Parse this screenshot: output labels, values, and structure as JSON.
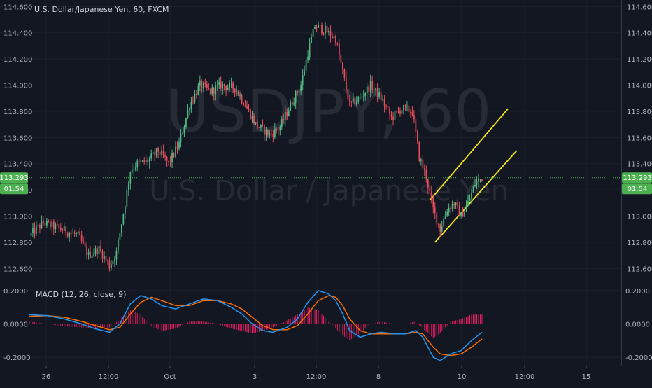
{
  "header": {
    "symbol_title": "U.S. Dollar/Japanese Yen, 60, FXCM",
    "watermark_ticker": "USDJPY, 60",
    "watermark_name": "U.S. Dollar / Japanese Yen"
  },
  "price_tag": {
    "value": "113.293",
    "countdown": "01:54"
  },
  "macd": {
    "label": "MACD (12, 26, close, 9)"
  },
  "colors": {
    "background": "#131722",
    "up_candle": "#53b987",
    "down_candle": "#eb4d5c",
    "channel_line": "#f5e61b",
    "macd_line": "#2196f3",
    "signal_line": "#ff6d00",
    "histogram": "#e91e63",
    "price_line": "#4caf50"
  },
  "chart_data": [
    {
      "type": "candlestick",
      "title": "U.S. Dollar/Japanese Yen, 60, FXCM",
      "ylim": [
        112.5,
        114.65
      ],
      "y_ticks": [
        "112.600",
        "112.800",
        "113.000",
        "113.200",
        "113.400",
        "113.600",
        "113.800",
        "114.000",
        "114.200",
        "114.400",
        "114.600"
      ],
      "x_ticks": [
        "26",
        "12:00",
        "Oct",
        "3",
        "12:00",
        "8",
        "10",
        "12:00",
        "15"
      ],
      "current_price": 113.293,
      "close_path": [
        [
          0,
          112.85
        ],
        [
          8,
          112.95
        ],
        [
          14,
          112.92
        ],
        [
          22,
          112.88
        ],
        [
          28,
          112.85
        ],
        [
          34,
          112.7
        ],
        [
          40,
          112.75
        ],
        [
          46,
          112.62
        ],
        [
          50,
          112.72
        ],
        [
          55,
          113.1
        ],
        [
          58,
          113.35
        ],
        [
          62,
          113.4
        ],
        [
          68,
          113.42
        ],
        [
          74,
          113.5
        ],
        [
          80,
          113.4
        ],
        [
          86,
          113.55
        ],
        [
          92,
          113.85
        ],
        [
          98,
          114.0
        ],
        [
          104,
          113.95
        ],
        [
          110,
          114.0
        ],
        [
          118,
          113.98
        ],
        [
          124,
          113.85
        ],
        [
          130,
          113.7
        ],
        [
          138,
          113.62
        ],
        [
          144,
          113.68
        ],
        [
          150,
          113.85
        ],
        [
          156,
          114.0
        ],
        [
          160,
          114.25
        ],
        [
          164,
          114.45
        ],
        [
          170,
          114.42
        ],
        [
          176,
          114.35
        ],
        [
          180,
          114.1
        ],
        [
          184,
          113.85
        ],
        [
          190,
          113.9
        ],
        [
          196,
          114.0
        ],
        [
          202,
          113.9
        ],
        [
          208,
          113.75
        ],
        [
          214,
          113.82
        ],
        [
          220,
          113.8
        ],
        [
          224,
          113.45
        ],
        [
          228,
          113.3
        ],
        [
          232,
          113.05
        ],
        [
          236,
          112.9
        ],
        [
          240,
          113.05
        ],
        [
          244,
          113.1
        ],
        [
          248,
          113.0
        ],
        [
          252,
          113.1
        ],
        [
          256,
          113.25
        ],
        [
          260,
          113.293
        ]
      ],
      "channel_lines": [
        {
          "start": [
            230,
            113.12
          ],
          "end": [
            275,
            113.82
          ]
        },
        {
          "start": [
            233,
            112.8
          ],
          "end": [
            280,
            113.5
          ]
        }
      ]
    },
    {
      "type": "line",
      "title": "MACD (12, 26, close, 9)",
      "ylim": [
        -0.25,
        0.25
      ],
      "y_ticks": [
        "0.2000",
        "0.0000",
        "-0.2000"
      ],
      "series": [
        {
          "role": "macd",
          "points": [
            [
              0,
              0.055
            ],
            [
              10,
              0.05
            ],
            [
              20,
              0.03
            ],
            [
              30,
              0.0
            ],
            [
              38,
              -0.03
            ],
            [
              46,
              -0.05
            ],
            [
              52,
              0.0
            ],
            [
              58,
              0.12
            ],
            [
              64,
              0.17
            ],
            [
              70,
              0.15
            ],
            [
              76,
              0.11
            ],
            [
              84,
              0.09
            ],
            [
              92,
              0.12
            ],
            [
              100,
              0.15
            ],
            [
              108,
              0.14
            ],
            [
              116,
              0.1
            ],
            [
              122,
              0.06
            ],
            [
              128,
              0.0
            ],
            [
              134,
              -0.04
            ],
            [
              140,
              -0.05
            ],
            [
              148,
              -0.02
            ],
            [
              154,
              0.03
            ],
            [
              160,
              0.13
            ],
            [
              166,
              0.2
            ],
            [
              172,
              0.18
            ],
            [
              176,
              0.14
            ],
            [
              180,
              0.06
            ],
            [
              184,
              -0.04
            ],
            [
              190,
              -0.08
            ],
            [
              196,
              -0.06
            ],
            [
              202,
              -0.05
            ],
            [
              210,
              -0.06
            ],
            [
              216,
              -0.06
            ],
            [
              222,
              -0.04
            ],
            [
              226,
              -0.08
            ],
            [
              232,
              -0.2
            ],
            [
              236,
              -0.22
            ],
            [
              242,
              -0.18
            ],
            [
              248,
              -0.16
            ],
            [
              254,
              -0.1
            ],
            [
              260,
              -0.05
            ]
          ]
        },
        {
          "role": "signal",
          "points": [
            [
              0,
              0.045
            ],
            [
              10,
              0.05
            ],
            [
              20,
              0.04
            ],
            [
              30,
              0.015
            ],
            [
              38,
              -0.01
            ],
            [
              46,
              -0.035
            ],
            [
              52,
              -0.02
            ],
            [
              58,
              0.06
            ],
            [
              64,
              0.13
            ],
            [
              70,
              0.16
            ],
            [
              76,
              0.14
            ],
            [
              84,
              0.11
            ],
            [
              92,
              0.11
            ],
            [
              100,
              0.14
            ],
            [
              108,
              0.14
            ],
            [
              116,
              0.12
            ],
            [
              122,
              0.09
            ],
            [
              128,
              0.04
            ],
            [
              134,
              -0.01
            ],
            [
              140,
              -0.035
            ],
            [
              148,
              -0.035
            ],
            [
              154,
              -0.01
            ],
            [
              160,
              0.06
            ],
            [
              166,
              0.14
            ],
            [
              172,
              0.17
            ],
            [
              176,
              0.16
            ],
            [
              180,
              0.11
            ],
            [
              184,
              0.03
            ],
            [
              190,
              -0.04
            ],
            [
              196,
              -0.06
            ],
            [
              202,
              -0.06
            ],
            [
              210,
              -0.06
            ],
            [
              216,
              -0.06
            ],
            [
              222,
              -0.05
            ],
            [
              226,
              -0.06
            ],
            [
              232,
              -0.14
            ],
            [
              236,
              -0.18
            ],
            [
              242,
              -0.19
            ],
            [
              248,
              -0.18
            ],
            [
              254,
              -0.14
            ],
            [
              260,
              -0.09
            ]
          ]
        }
      ]
    }
  ]
}
